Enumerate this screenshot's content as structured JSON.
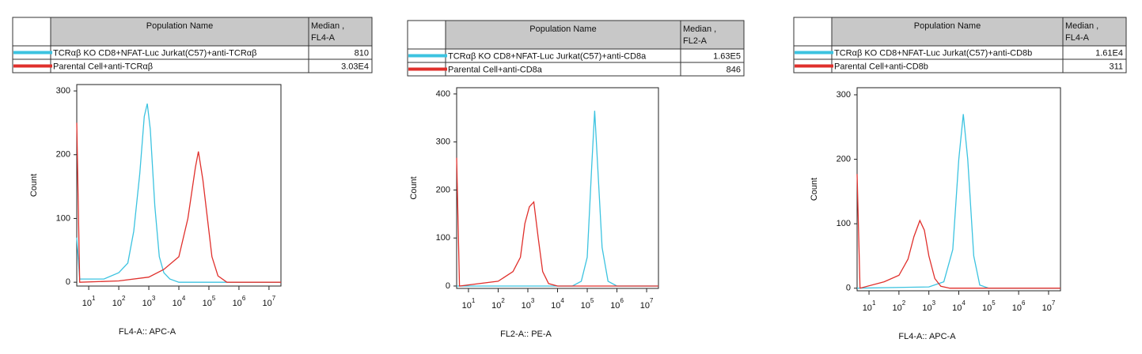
{
  "chart_data": [
    {
      "type": "line",
      "table": {
        "header": "Population Name",
        "median_header": [
          "Median ,",
          "FL4-A"
        ]
      },
      "series": [
        {
          "name": "TCRαβ KO CD8+NFAT-Luc Jurkat(C57)+anti-TCRαβ",
          "color": "#3cc3e0",
          "median": 810,
          "x": [
            4,
            5,
            32,
            100,
            200,
            316,
            500,
            708,
            891,
            1122,
            1585,
            2239,
            3162,
            5012,
            10000,
            25000000
          ],
          "values": [
            70,
            5,
            5,
            15,
            30,
            80,
            170,
            260,
            280,
            240,
            120,
            40,
            15,
            5,
            0,
            0
          ]
        },
        {
          "name": "Parental Cell+anti-TCRαβ",
          "color": "#e0302c",
          "median": {
            "value": 30300,
            "label": "3.03E4"
          },
          "x": [
            4,
            5,
            100,
            1000,
            3162,
            10000,
            19953,
            35481,
            44668,
            63096,
            89125,
            125893,
            199526,
            398107,
            25000000
          ],
          "values": [
            250,
            0,
            2,
            8,
            20,
            40,
            100,
            180,
            205,
            160,
            100,
            40,
            10,
            0,
            0
          ]
        }
      ],
      "xscale": "log",
      "xlim": [
        4,
        25000000
      ],
      "xticks": [
        {
          "value": 10,
          "label": "10",
          "exponent": "1"
        },
        {
          "value": 100,
          "label": "10",
          "exponent": "2"
        },
        {
          "value": 1000,
          "label": "10",
          "exponent": "3"
        },
        {
          "value": 10000,
          "label": "10",
          "exponent": "4"
        },
        {
          "value": 100000,
          "label": "10",
          "exponent": "5"
        },
        {
          "value": 1000000,
          "label": "10",
          "exponent": "6"
        },
        {
          "value": 10000000,
          "label": "10",
          "exponent": "7"
        }
      ],
      "ylim": [
        -6,
        310
      ],
      "yticks": [
        0,
        100,
        200,
        300
      ],
      "ylabel": "Count",
      "xlabel": "FL4-A:: APC-A"
    },
    {
      "type": "line",
      "table": {
        "header": "Population Name",
        "median_header": [
          "Median ,",
          "FL2-A"
        ]
      },
      "series": [
        {
          "name": "TCRαβ KO CD8+NFAT-Luc Jurkat(C57)+anti-CD8a",
          "color": "#3cc3e0",
          "median": {
            "value": 163000,
            "label": "1.63E5"
          },
          "x": [
            4,
            31623,
            63096,
            100000,
            141254,
            177828,
            223872,
            316228,
            501187,
            1000000,
            25000000
          ],
          "values": [
            0,
            0,
            10,
            60,
            250,
            365,
            250,
            80,
            10,
            0,
            0
          ]
        },
        {
          "name": "Parental Cell+anti-CD8a",
          "color": "#e0302c",
          "median": 846,
          "x": [
            4,
            5,
            100,
            316,
            562,
            794,
            1122,
            1585,
            2239,
            3162,
            5012,
            10000,
            25000000
          ],
          "values": [
            267,
            0,
            10,
            30,
            60,
            130,
            165,
            175,
            100,
            30,
            5,
            0,
            0
          ]
        }
      ],
      "xscale": "log",
      "xlim": [
        4,
        25000000
      ],
      "xticks": [
        {
          "value": 10,
          "label": "10",
          "exponent": "1"
        },
        {
          "value": 100,
          "label": "10",
          "exponent": "2"
        },
        {
          "value": 1000,
          "label": "10",
          "exponent": "3"
        },
        {
          "value": 10000,
          "label": "10",
          "exponent": "4"
        },
        {
          "value": 100000,
          "label": "10",
          "exponent": "5"
        },
        {
          "value": 1000000,
          "label": "10",
          "exponent": "6"
        },
        {
          "value": 10000000,
          "label": "10",
          "exponent": "7"
        }
      ],
      "ylim": [
        -5,
        413
      ],
      "yticks": [
        0,
        100,
        200,
        300,
        400
      ],
      "ylabel": "Count",
      "xlabel": "FL2-A:: PE-A"
    },
    {
      "type": "line",
      "table": {
        "header": "Population Name",
        "median_header": [
          "Median ,",
          "FL4-A"
        ]
      },
      "series": [
        {
          "name": "TCRαβ KO CD8+NFAT-Luc Jurkat(C57)+anti-CD8b",
          "color": "#3cc3e0",
          "median": {
            "value": 16100,
            "label": "1.61E4"
          },
          "x": [
            4,
            1000,
            3162,
            6310,
            10000,
            14125,
            19953,
            31623,
            50119,
            100000,
            25000000
          ],
          "values": [
            0,
            2,
            10,
            60,
            200,
            270,
            200,
            50,
            5,
            0,
            0
          ]
        },
        {
          "name": "Parental Cell+anti-CD8b",
          "color": "#e0302c",
          "median": 311,
          "x": [
            4,
            5,
            32,
            100,
            200,
            316,
            500,
            708,
            1000,
            1585,
            2512,
            5012,
            25000000
          ],
          "values": [
            177,
            0,
            10,
            20,
            45,
            80,
            105,
            90,
            50,
            15,
            3,
            0,
            0
          ]
        }
      ],
      "xscale": "log",
      "xlim": [
        4,
        25000000
      ],
      "xticks": [
        {
          "value": 10,
          "label": "10",
          "exponent": "1"
        },
        {
          "value": 100,
          "label": "10",
          "exponent": "2"
        },
        {
          "value": 1000,
          "label": "10",
          "exponent": "3"
        },
        {
          "value": 10000,
          "label": "10",
          "exponent": "4"
        },
        {
          "value": 100000,
          "label": "10",
          "exponent": "5"
        },
        {
          "value": 1000000,
          "label": "10",
          "exponent": "6"
        },
        {
          "value": 10000000,
          "label": "10",
          "exponent": "7"
        }
      ],
      "ylim": [
        -4,
        311
      ],
      "yticks": [
        0,
        100,
        200,
        300
      ],
      "ylabel": "Count",
      "xlabel": "FL4-A:: APC-A"
    }
  ]
}
